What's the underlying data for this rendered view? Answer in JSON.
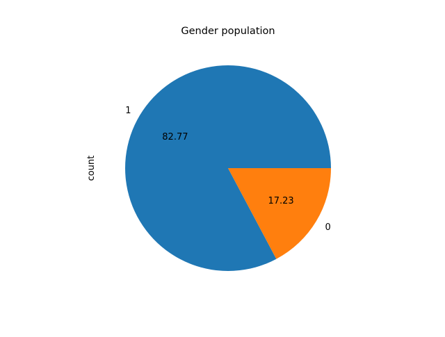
{
  "chart_data": {
    "type": "pie",
    "title": "Gender population",
    "ylabel": "count",
    "labels": [
      "1",
      "0"
    ],
    "values": [
      82.77,
      17.23
    ],
    "autopct_labels": [
      "82.77",
      "17.23"
    ],
    "colors": [
      "#1f77b4",
      "#ff7f0e"
    ],
    "startangle": 0,
    "direction": "counterclockwise"
  }
}
